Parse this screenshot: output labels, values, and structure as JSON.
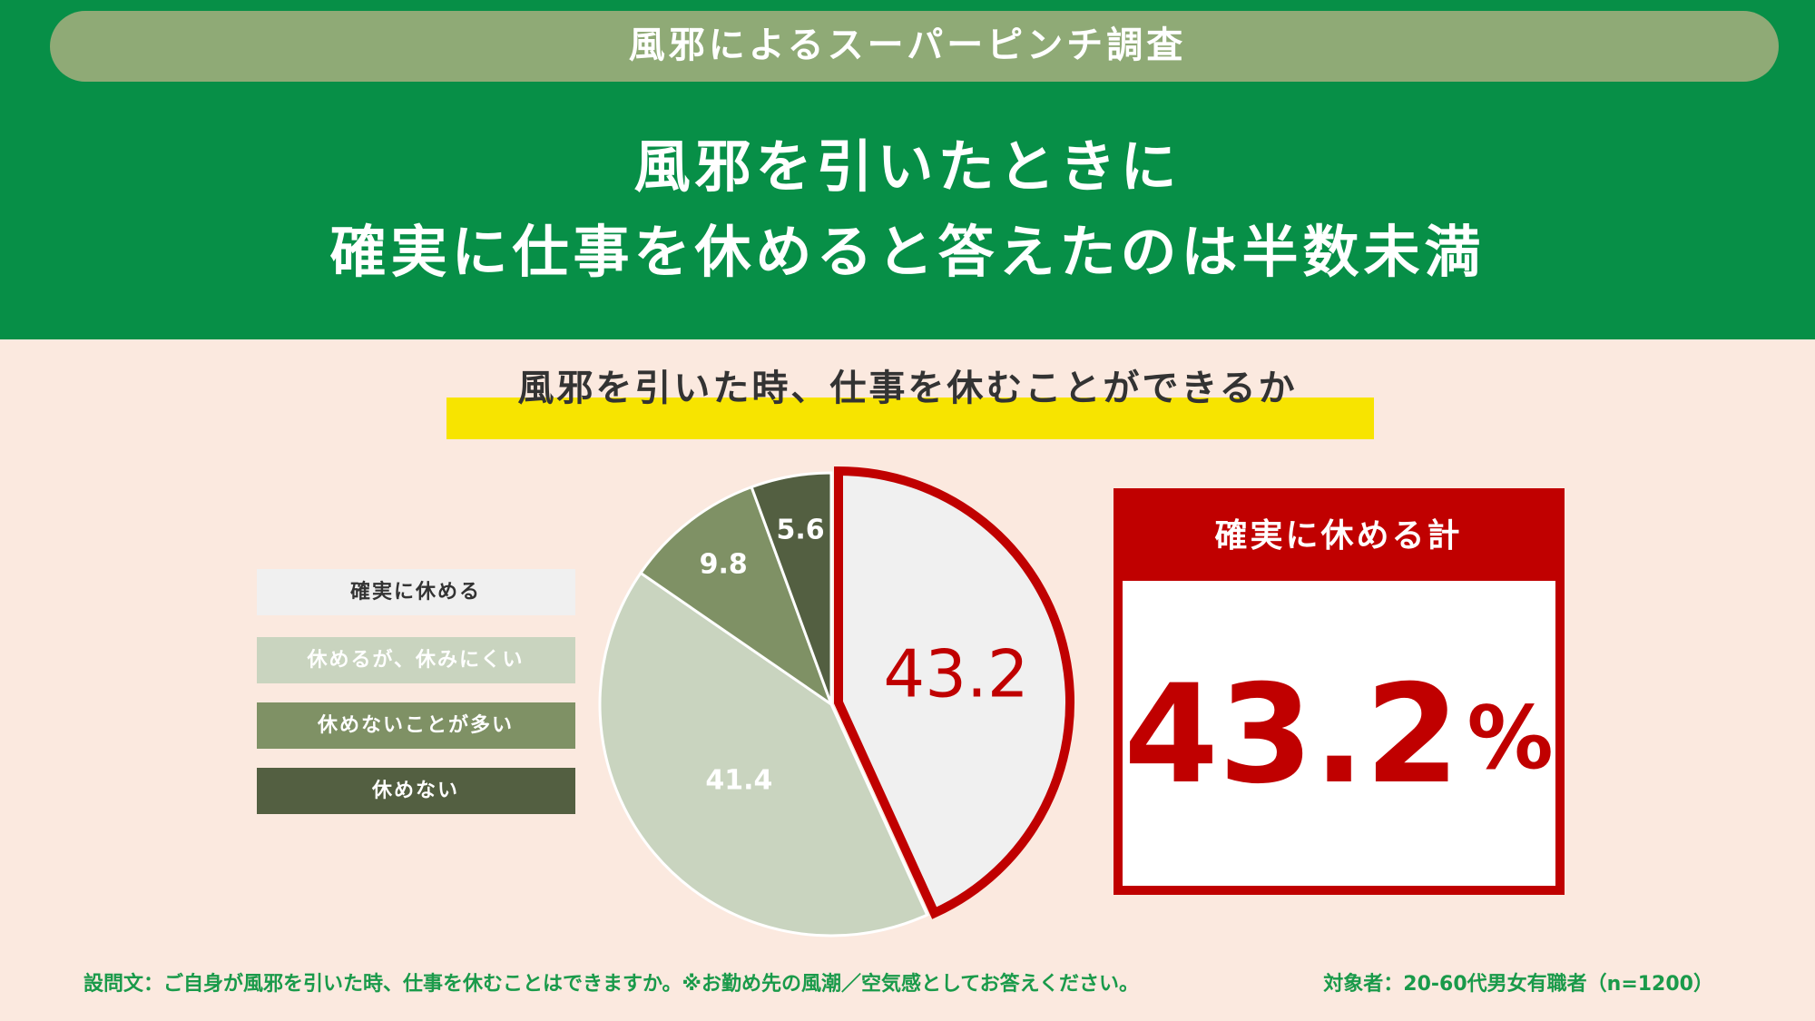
{
  "banner": "風邪によるスーパーピンチ調査",
  "headline": [
    "風邪を引いたときに",
    "確実に仕事を休めると答えたのは半数未満"
  ],
  "callout": {
    "label": "確実に休める計",
    "value": 43.2,
    "unit": "%"
  },
  "footer": {
    "question": "設問文：ご自身が風邪を引いた時、仕事を休むことはできますか。※お勤め先の風潮／空気感としてお答えください。",
    "target": "対象者：20-60代男女有職者（n=1200）"
  },
  "chart_data": {
    "type": "pie",
    "title": "風邪を引いた時、仕事を休むことができるか",
    "categories": [
      "確実に休める",
      "休めるが、休みにくい",
      "休めないことが多い",
      "休めない"
    ],
    "values": [
      43.2,
      41.4,
      9.8,
      5.6
    ],
    "colors": [
      "#f0f0f0",
      "#c9d4bf",
      "#7f9165",
      "#535f41"
    ],
    "highlight_color": "#c00000"
  }
}
